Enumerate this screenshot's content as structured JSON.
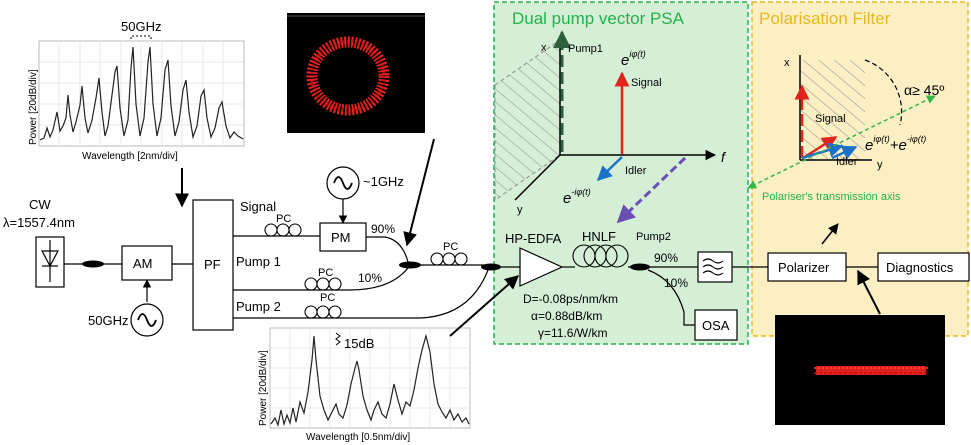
{
  "psa_panel": {
    "title": "Dual pump vector PSA",
    "fill": "#d5efd7",
    "title_color": "#22b24c",
    "x_axis": "x",
    "y_axis": "y",
    "f_axis": "f",
    "pump1": "Pump1",
    "pump2": "Pump2",
    "signal": "Signal",
    "idler": "Idler",
    "signal_phase": "e",
    "signal_phase_exp": "iφ(t)",
    "idler_phase": "e",
    "idler_phase_exp": "-iφ(t)"
  },
  "filter_panel": {
    "title": "Polarisation Filter",
    "fill": "#fdefc4",
    "title_color": "#e5b820",
    "x_axis": "x",
    "y_axis": "y",
    "signal": "Signal",
    "idler": "Idler",
    "angle": "α≥ 45º",
    "sum_e1": "e",
    "sum_exp1": "iφ(t)",
    "sum_plus": "+e",
    "sum_exp2": "-iφ(t)",
    "transmission_axis": "Polariser's transmission axis"
  },
  "top_spectrum": {
    "spacing_label": "50GHz",
    "ylabel": "Power [20dB/div]",
    "xlabel": "Wavelength [2nm/div]"
  },
  "bottom_spectrum": {
    "extinction_label": "15dB",
    "ylabel": "Power [20dB/div]",
    "xlabel": "Wavelength [0.5nm/div]"
  },
  "setup": {
    "cw": "CW",
    "cw_wavelength": "λ=1557.4nm",
    "am": "AM",
    "pf": "PF",
    "rf_50": "50GHz",
    "signal": "Signal",
    "pump1": "Pump 1",
    "pump2": "Pump 2",
    "pc": "PC",
    "pm": "PM",
    "rf_1": "~1GHz",
    "coupler_90": "90%",
    "coupler_10": "10%",
    "edfa": "HP-EDFA",
    "hnlf": "HNLF",
    "hnlf_d": "D=-0.08ps/nm/km",
    "hnlf_alpha": "α=0.88dB/km",
    "hnlf_gamma": "γ=11.6/W/km",
    "out_90": "90%",
    "out_10": "10%",
    "osa": "OSA",
    "polarizer": "Polarizer",
    "diagnostics": "Diagnostics"
  },
  "colors": {
    "signal_arrow": "#e0261c",
    "idler_arrow": "#1d72c8",
    "pump_dark": "#2e5e3b",
    "pump2_dashed": "#6a4fb3",
    "constellation": "#e3201b"
  }
}
